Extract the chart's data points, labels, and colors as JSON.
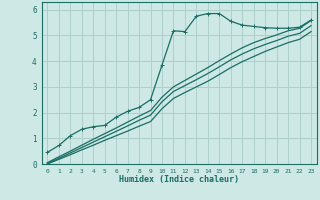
{
  "xlabel": "Humidex (Indice chaleur)",
  "bg_color": "#cde8e5",
  "grid_color": "#aed0cd",
  "line_color": "#1a6e64",
  "xlim": [
    -0.5,
    23.5
  ],
  "ylim": [
    0,
    6.3
  ],
  "xticks": [
    0,
    1,
    2,
    3,
    4,
    5,
    6,
    7,
    8,
    9,
    10,
    11,
    12,
    13,
    14,
    15,
    16,
    17,
    18,
    19,
    20,
    21,
    22,
    23
  ],
  "yticks": [
    0,
    1,
    2,
    3,
    4,
    5,
    6
  ],
  "series1_x": [
    0,
    1,
    2,
    3,
    4,
    5,
    6,
    7,
    8,
    9,
    10,
    11,
    12,
    13,
    14,
    15,
    16,
    17,
    18,
    19,
    20,
    21,
    22,
    23
  ],
  "series1_y": [
    0.45,
    0.72,
    1.1,
    1.35,
    1.45,
    1.5,
    1.82,
    2.05,
    2.2,
    2.5,
    3.85,
    5.18,
    5.15,
    5.75,
    5.85,
    5.85,
    5.55,
    5.4,
    5.35,
    5.3,
    5.28,
    5.28,
    5.32,
    5.6
  ],
  "series2_x": [
    0,
    1,
    2,
    3,
    4,
    5,
    6,
    7,
    8,
    9,
    10,
    11,
    12,
    13,
    14,
    15,
    16,
    17,
    18,
    19,
    20,
    21,
    22,
    23
  ],
  "series2_y": [
    0.05,
    0.28,
    0.5,
    0.73,
    0.96,
    1.18,
    1.4,
    1.63,
    1.86,
    2.08,
    2.6,
    3.0,
    3.25,
    3.5,
    3.75,
    4.02,
    4.28,
    4.52,
    4.72,
    4.88,
    5.02,
    5.18,
    5.28,
    5.58
  ],
  "series3_x": [
    0,
    1,
    2,
    3,
    4,
    5,
    6,
    7,
    8,
    9,
    10,
    11,
    12,
    13,
    14,
    15,
    16,
    17,
    18,
    19,
    20,
    21,
    22,
    23
  ],
  "series3_y": [
    0.02,
    0.22,
    0.43,
    0.64,
    0.85,
    1.06,
    1.27,
    1.48,
    1.7,
    1.9,
    2.42,
    2.82,
    3.05,
    3.28,
    3.52,
    3.78,
    4.05,
    4.28,
    4.48,
    4.65,
    4.8,
    4.97,
    5.08,
    5.38
  ],
  "series4_x": [
    0,
    1,
    2,
    3,
    4,
    5,
    6,
    7,
    8,
    9,
    10,
    11,
    12,
    13,
    14,
    15,
    16,
    17,
    18,
    19,
    20,
    21,
    22,
    23
  ],
  "series4_y": [
    0.0,
    0.18,
    0.36,
    0.55,
    0.73,
    0.92,
    1.1,
    1.28,
    1.47,
    1.65,
    2.15,
    2.55,
    2.78,
    3.0,
    3.22,
    3.48,
    3.75,
    3.98,
    4.18,
    4.38,
    4.55,
    4.72,
    4.85,
    5.15
  ]
}
